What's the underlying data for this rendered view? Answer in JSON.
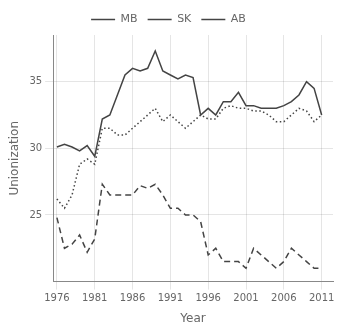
{
  "chart_data": {
    "type": "line",
    "x": [
      1976,
      1977,
      1978,
      1979,
      1980,
      1981,
      1982,
      1983,
      1984,
      1985,
      1986,
      1987,
      1988,
      1989,
      1990,
      1991,
      1992,
      1993,
      1994,
      1995,
      1996,
      1997,
      1998,
      1999,
      2000,
      2001,
      2002,
      2003,
      2004,
      2005,
      2006,
      2007,
      2008,
      2009,
      2010,
      2011
    ],
    "series": [
      {
        "name": "MB",
        "color": "#444444",
        "line_style": "solid",
        "values": [
          30.1,
          30.3,
          30.1,
          29.8,
          30.2,
          29.4,
          32.2,
          32.5,
          34.0,
          35.5,
          36.0,
          35.8,
          36.0,
          37.3,
          35.8,
          35.5,
          35.2,
          35.5,
          35.3,
          32.5,
          33.0,
          32.5,
          33.5,
          33.5,
          34.2,
          33.2,
          33.2,
          33.0,
          33.0,
          33.0,
          33.2,
          33.5,
          34.0,
          35.0,
          34.5,
          32.5
        ]
      },
      {
        "name": "SK",
        "color": "#444444",
        "line_style": "dotted",
        "values": [
          26.2,
          25.5,
          26.5,
          28.8,
          29.2,
          28.8,
          31.5,
          31.5,
          31.0,
          31.0,
          31.5,
          32.0,
          32.5,
          33.0,
          32.0,
          32.5,
          32.0,
          31.5,
          32.0,
          32.5,
          32.2,
          32.2,
          33.0,
          33.2,
          33.0,
          33.0,
          32.8,
          32.8,
          32.5,
          32.0,
          32.0,
          32.5,
          33.0,
          32.8,
          32.0,
          32.5
        ]
      },
      {
        "name": "AB",
        "color": "#444444",
        "line_style": "dashed",
        "values": [
          24.8,
          22.5,
          22.8,
          23.5,
          22.2,
          23.2,
          27.3,
          26.5,
          26.5,
          26.5,
          26.5,
          27.2,
          27.0,
          27.3,
          26.5,
          25.5,
          25.5,
          25.0,
          25.0,
          24.5,
          22.0,
          22.5,
          21.5,
          21.5,
          21.5,
          21.0,
          22.5,
          22.0,
          21.5,
          21.0,
          21.5,
          22.5,
          22.0,
          21.5,
          21.0,
          21.0
        ]
      }
    ],
    "xlabel": "Year",
    "ylabel": "Unionization",
    "xlim": [
      1975.5,
      2012.5
    ],
    "ylim": [
      20,
      38.5
    ],
    "xticks": [
      1976,
      1981,
      1986,
      1991,
      1996,
      2001,
      2006,
      2011
    ],
    "yticks": [
      25,
      30,
      35
    ],
    "grid": true,
    "legend": "top"
  }
}
